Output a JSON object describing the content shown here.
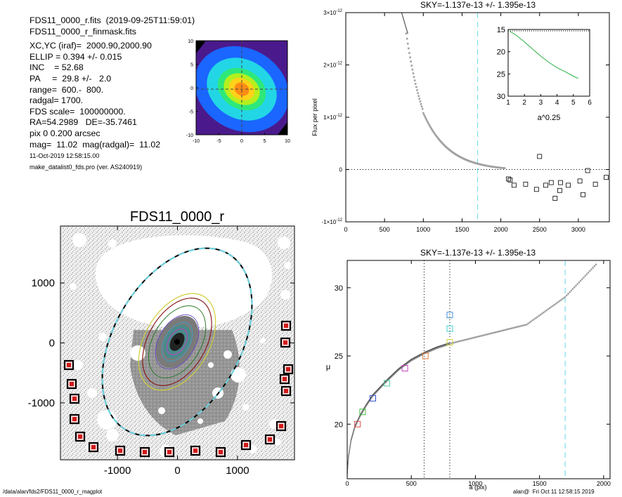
{
  "info": {
    "lines": [
      "FDS11_0000_r.fits  (2019-09-25T11:59:01)",
      "FDS11_0000_r_finmask.fits",
      "XC,YC (iraf)=  2000.90,2000.90",
      "ELLIP = 0.394 +/- 0.015",
      "INC    = 52.68",
      "PA     =  29.8 +/-   2.0",
      "range=  600.-  800.",
      "radgal= 1700.",
      "FDS scale=  100000000.",
      "RA=54.2989   DE=-35.7461",
      "pix 0 0.200 arcsec",
      "mag=  11.02  mag(radgal)=  11.02"
    ],
    "small": [
      "11-Oct-2019 12:58:15.00",
      "make_datalist0_fds.pro (ver. AS240919)"
    ]
  },
  "footer": {
    "left": "/data/alan/fds2/FDS11_0000_r_magplot",
    "right": "alan@  Fri Oct 11 12:58:15 2019"
  },
  "colors": {
    "gray_points": "#a0a0a0",
    "sky_marker": "#7de0ea",
    "mask_red": "#d21a1a",
    "ellipse_dash": "#6fd8e6"
  },
  "chart_data": [
    {
      "type": "heatmap",
      "id": "thumbnail",
      "xlim": [
        -10,
        10
      ],
      "ylim": [
        -10,
        10
      ],
      "x_ticks": [
        "-10",
        "-5",
        "0",
        "5",
        "10"
      ],
      "y_ticks": [
        "10",
        "5",
        "0",
        "-5",
        "-10"
      ],
      "contour_colors": [
        "#4a1a8c",
        "#1a66ff",
        "#22d6e6",
        "#2ee87a",
        "#b4f01e",
        "#ffd21a",
        "#ff8c14"
      ]
    },
    {
      "type": "scatter",
      "id": "sky-profile",
      "title": "SKY=-1.137e-13 +/- 1.395e-13",
      "ylabel": "Flux per pixel",
      "xlim": [
        0,
        3400
      ],
      "ylim": [
        -1e-12,
        3e-12
      ],
      "x_ticks": [
        "0",
        "500",
        "1000",
        "1500",
        "2000",
        "2500",
        "3000"
      ],
      "y_ticks": [
        {
          "mant": "-1×10",
          "exp": "-12",
          "v": -1e-12
        },
        {
          "mant": "0",
          "exp": "",
          "v": 0
        },
        {
          "mant": "1×10",
          "exp": "-12",
          "v": 1e-12
        },
        {
          "mant": "2×10",
          "exp": "-12",
          "v": 2e-12
        },
        {
          "mant": "3×10",
          "exp": "-12",
          "v": 3e-12
        }
      ],
      "vline_dashed": 1700,
      "hline_dotted": 0,
      "squares": [
        {
          "x": 2100,
          "y": -1.8e-13
        },
        {
          "x": 2120,
          "y": -2e-13
        },
        {
          "x": 2170,
          "y": -3e-13
        },
        {
          "x": 2320,
          "y": -2.8e-13
        },
        {
          "x": 2460,
          "y": -3.8e-13
        },
        {
          "x": 2500,
          "y": 2.5e-13
        },
        {
          "x": 2580,
          "y": -3e-13
        },
        {
          "x": 2650,
          "y": -2.5e-13
        },
        {
          "x": 2700,
          "y": -5.5e-13
        },
        {
          "x": 2760,
          "y": -4e-13
        },
        {
          "x": 2770,
          "y": -2.5e-13
        },
        {
          "x": 2870,
          "y": -3e-13
        },
        {
          "x": 3020,
          "y": -2.2e-13
        },
        {
          "x": 3060,
          "y": -4.8e-13
        },
        {
          "x": 3120,
          "y": -2e-14
        },
        {
          "x": 3220,
          "y": -2.8e-13
        },
        {
          "x": 3360,
          "y": -1.5e-13
        }
      ],
      "inset": {
        "xlim": [
          1,
          6
        ],
        "ylim": [
          15,
          30
        ],
        "x_ticks": [
          "1",
          "2",
          "3",
          "4",
          "5",
          "6"
        ],
        "y_ticks": [
          "15",
          "20",
          "25",
          "30"
        ],
        "xlabel": "a^0.25",
        "x": [
          1.1,
          1.5,
          2.0,
          2.5,
          3.0,
          3.5,
          4.0,
          4.5,
          5.0,
          5.3
        ],
        "y": [
          15.4,
          16.3,
          17.8,
          19.4,
          21.0,
          22.4,
          23.6,
          24.5,
          25.5,
          26.0
        ]
      }
    },
    {
      "type": "heatmap",
      "id": "galaxy-image",
      "title": "FDS11_0000_r",
      "xlim": [
        -1950,
        1950
      ],
      "ylim": [
        -1950,
        1950
      ],
      "x_ticks": [
        "-1000",
        "0",
        "1000"
      ],
      "y_ticks": [
        "1000",
        "0",
        "-1000"
      ],
      "sky_boxes": 22
    },
    {
      "type": "scatter",
      "id": "surface-brightness",
      "title": "SKY=-1.137e-13 +/- 1.395e-13",
      "xlabel": "a (pix)",
      "ylabel": "μ",
      "xlim": [
        0,
        2050
      ],
      "ylim": [
        32,
        16
      ],
      "x_ticks": [
        "0",
        "500",
        "1000",
        "1500",
        "2000"
      ],
      "y_ticks": [
        "20",
        "25",
        "30"
      ],
      "vlines_dotted": [
        600,
        800
      ],
      "vline_dashed": 1700,
      "profile_x": [
        0,
        10,
        30,
        60,
        100,
        150,
        200,
        300,
        400,
        500,
        600,
        700,
        800
      ],
      "profile_y": [
        16.3,
        17.6,
        18.8,
        19.8,
        20.6,
        21.4,
        22.1,
        23.1,
        24.0,
        24.7,
        25.2,
        25.6,
        25.9
      ],
      "markers": [
        {
          "x": 80,
          "y": 20.0,
          "color": "#e05050"
        },
        {
          "x": 120,
          "y": 20.9,
          "color": "#40c040"
        },
        {
          "x": 200,
          "y": 21.9,
          "color": "#3050d0"
        },
        {
          "x": 310,
          "y": 23.0,
          "color": "#50d0a0"
        },
        {
          "x": 450,
          "y": 24.1,
          "color": "#c040c0"
        },
        {
          "x": 610,
          "y": 25.0,
          "color": "#e08040"
        },
        {
          "x": 800,
          "y": 26.0,
          "color": "#d0d040"
        },
        {
          "x": 800,
          "y": 27.0,
          "color": "#40d0d0"
        },
        {
          "x": 800,
          "y": 28.0,
          "color": "#4090e0"
        }
      ]
    }
  ]
}
